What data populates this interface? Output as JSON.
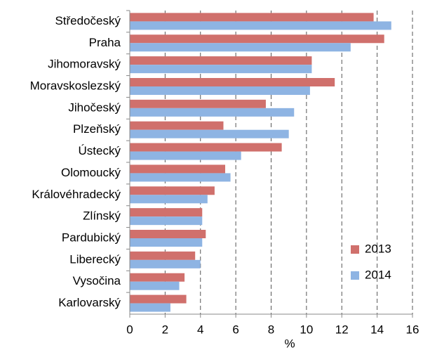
{
  "chart_data": {
    "type": "bar",
    "orientation": "horizontal",
    "xlabel": "%",
    "categories": [
      "Středočeský",
      "Praha",
      "Jihomoravský",
      "Moravskoslezský",
      "Jihočeský",
      "Plzeňský",
      "Ústecký",
      "Olomoucký",
      "Královéhradecký",
      "Zlínský",
      "Pardubický",
      "Liberecký",
      "Vysočina",
      "Karlovarský"
    ],
    "series": [
      {
        "name": "2013",
        "color": "#d0706c",
        "values": [
          13.8,
          14.4,
          10.3,
          11.6,
          7.7,
          5.3,
          8.6,
          5.4,
          4.8,
          4.1,
          4.3,
          3.7,
          3.1,
          3.2
        ]
      },
      {
        "name": "2014",
        "color": "#8eb4e3",
        "values": [
          14.8,
          12.5,
          10.3,
          10.2,
          9.3,
          9.0,
          6.3,
          5.7,
          4.4,
          4.1,
          4.1,
          4.0,
          2.8,
          2.3
        ]
      }
    ],
    "xlim": [
      0,
      16
    ],
    "xticks": [
      0,
      2,
      4,
      6,
      8,
      10,
      12,
      14,
      16
    ],
    "grid": true,
    "legend": "right"
  }
}
